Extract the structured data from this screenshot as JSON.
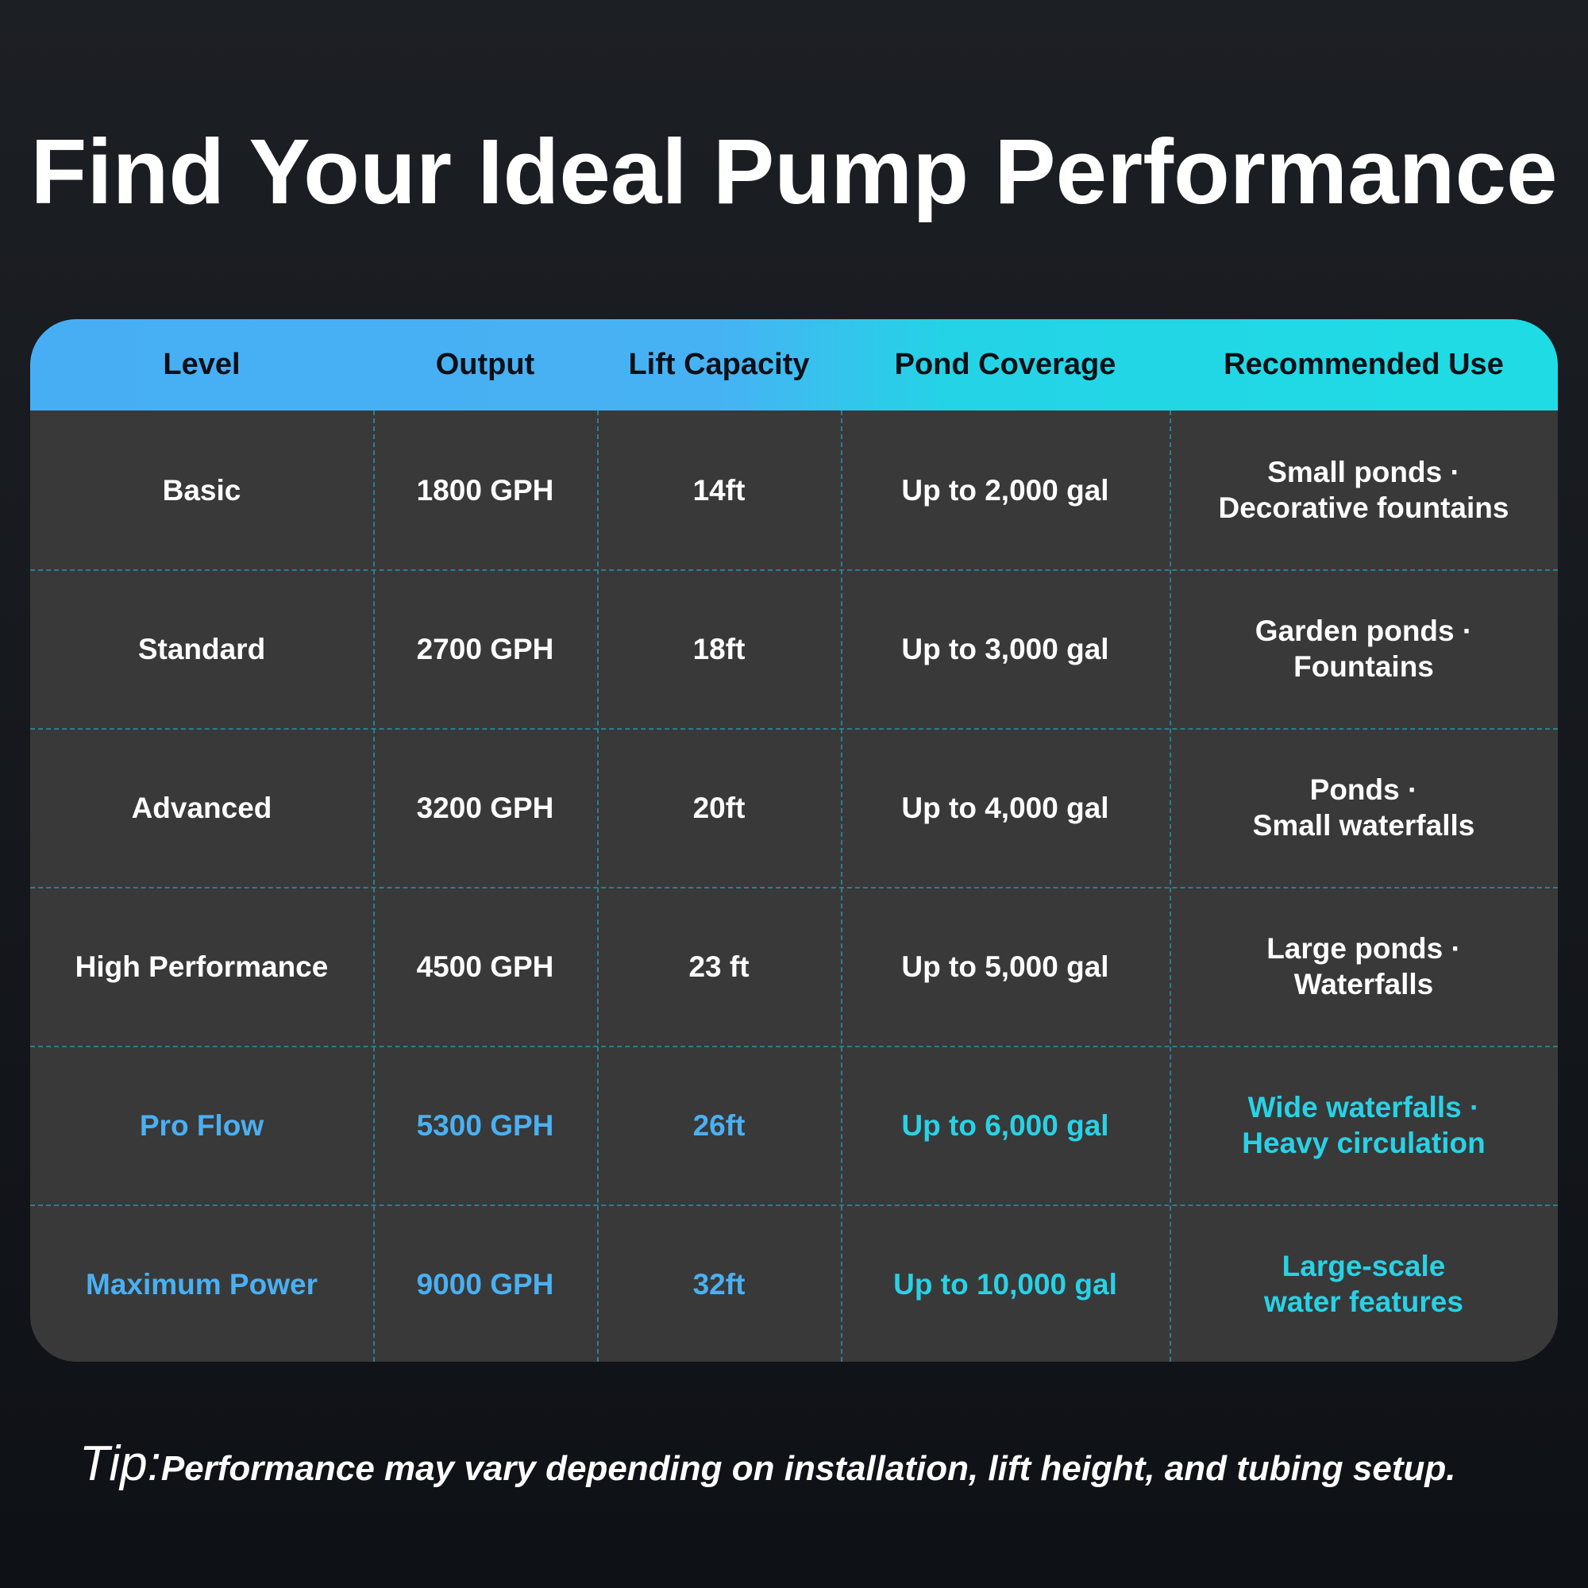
{
  "title": "Find Your Ideal Pump Performance",
  "colors": {
    "header_gradient_start": "#47aef4",
    "header_gradient_end": "#1fdce4",
    "table_bg": "#393939",
    "highlight_blue": "#4ab0f2",
    "highlight_cyan": "#28d2e6"
  },
  "table": {
    "headers": [
      "Level",
      "Output",
      "Lift Capacity",
      "Pond Coverage",
      "Recommended Use"
    ],
    "rows": [
      {
        "level": "Basic",
        "output": "1800 GPH",
        "lift": "14ft",
        "coverage": "Up to 2,000 gal",
        "use_line1": "Small ponds ·",
        "use_line2": "Decorative fountains",
        "highlight": false
      },
      {
        "level": "Standard",
        "output": "2700 GPH",
        "lift": "18ft",
        "coverage": "Up to 3,000 gal",
        "use_line1": "Garden ponds ·",
        "use_line2": "Fountains",
        "highlight": false
      },
      {
        "level": "Advanced",
        "output": "3200 GPH",
        "lift": "20ft",
        "coverage": "Up to 4,000 gal",
        "use_line1": "Ponds ·",
        "use_line2": "Small waterfalls",
        "highlight": false
      },
      {
        "level": "High Performance",
        "output": "4500 GPH",
        "lift": "23 ft",
        "coverage": "Up to 5,000 gal",
        "use_line1": "Large ponds ·",
        "use_line2": "Waterfalls",
        "highlight": false
      },
      {
        "level": "Pro Flow",
        "output": "5300 GPH",
        "lift": "26ft",
        "coverage": "Up to 6,000 gal",
        "use_line1": "Wide waterfalls ·",
        "use_line2": "Heavy circulation",
        "highlight": true
      },
      {
        "level": "Maximum Power",
        "output": "9000 GPH",
        "lift": "32ft",
        "coverage": "Up to 10,000 gal",
        "use_line1": "Large-scale",
        "use_line2": "water features",
        "highlight": true
      }
    ]
  },
  "tip": {
    "label": "Tip:",
    "text": "Performance may vary depending on installation, lift height, and tubing setup."
  }
}
